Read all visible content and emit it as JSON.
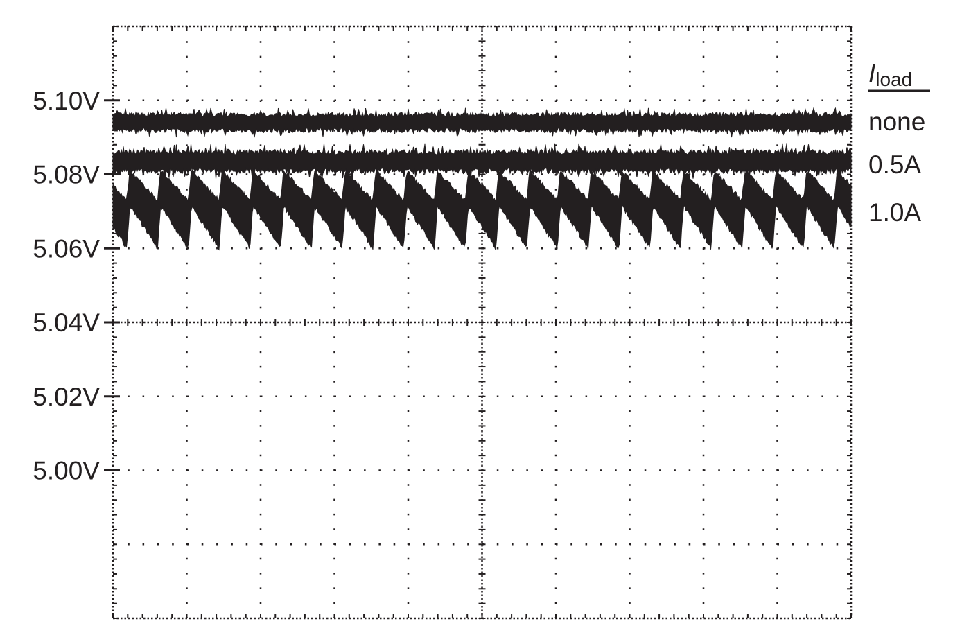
{
  "chart_data": {
    "type": "line",
    "title": "",
    "xlabel": "",
    "ylabel": "",
    "ylim": [
      4.96,
      5.12
    ],
    "x_divisions": 10,
    "y_divisions": 8,
    "grid": true,
    "ytick_values": [
      5.1,
      5.08,
      5.06,
      5.04,
      5.02,
      5.0
    ],
    "ytick_labels": [
      "5.10V",
      "5.08V",
      "5.06V",
      "5.04V",
      "5.02V",
      "5.00V"
    ],
    "legend": {
      "title_symbol": "I",
      "title_subscript": "load",
      "placement": "right"
    },
    "series": [
      {
        "name": "none",
        "shape": "noisy-flat",
        "center": 5.094,
        "min": 5.0915,
        "max": 5.0965
      },
      {
        "name": "0.5A",
        "shape": "noisy-flat",
        "center": 5.0835,
        "min": 5.0805,
        "max": 5.0865
      },
      {
        "name": "1.0A",
        "shape": "sawtooth",
        "min": 5.06,
        "max": 5.081,
        "cycles": 24
      }
    ],
    "trace_color": "#231f20"
  }
}
